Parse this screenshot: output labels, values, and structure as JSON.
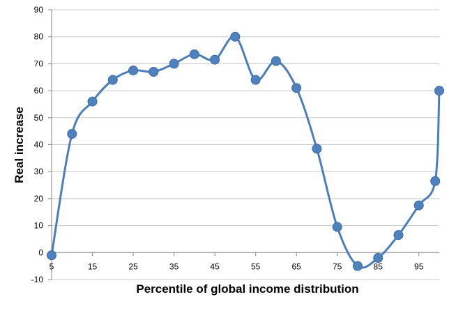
{
  "chart_data": {
    "type": "line",
    "title": "",
    "xlabel": "Percentile of global income distribution",
    "ylabel": "Real increase",
    "x_tick_labels": [
      "5",
      "15",
      "25",
      "35",
      "45",
      "55",
      "65",
      "75",
      "85",
      "95"
    ],
    "y_tick_labels": [
      "90",
      "80",
      "70",
      "60",
      "50",
      "40",
      "30",
      "20",
      "10",
      "0",
      "-10"
    ],
    "ylim": [
      -10,
      90
    ],
    "grid": "horizontal",
    "legend": "none",
    "series": [
      {
        "x": [
          5,
          10,
          15,
          20,
          25,
          30,
          35,
          40,
          45,
          50,
          55,
          60,
          65,
          70,
          75,
          80,
          85,
          90,
          95,
          99,
          100
        ],
        "y": [
          -1,
          44,
          56,
          64,
          67.5,
          67,
          70,
          73.5,
          71.5,
          80,
          64,
          71,
          61,
          38.5,
          9.5,
          -5,
          -2,
          6.5,
          17.5,
          26.5,
          60
        ]
      }
    ],
    "colors": {
      "line": "#4a7ebb",
      "marker": "#4f81bd",
      "grid": "#c8c8c8",
      "axis": "#868686",
      "text": "#000000"
    }
  }
}
